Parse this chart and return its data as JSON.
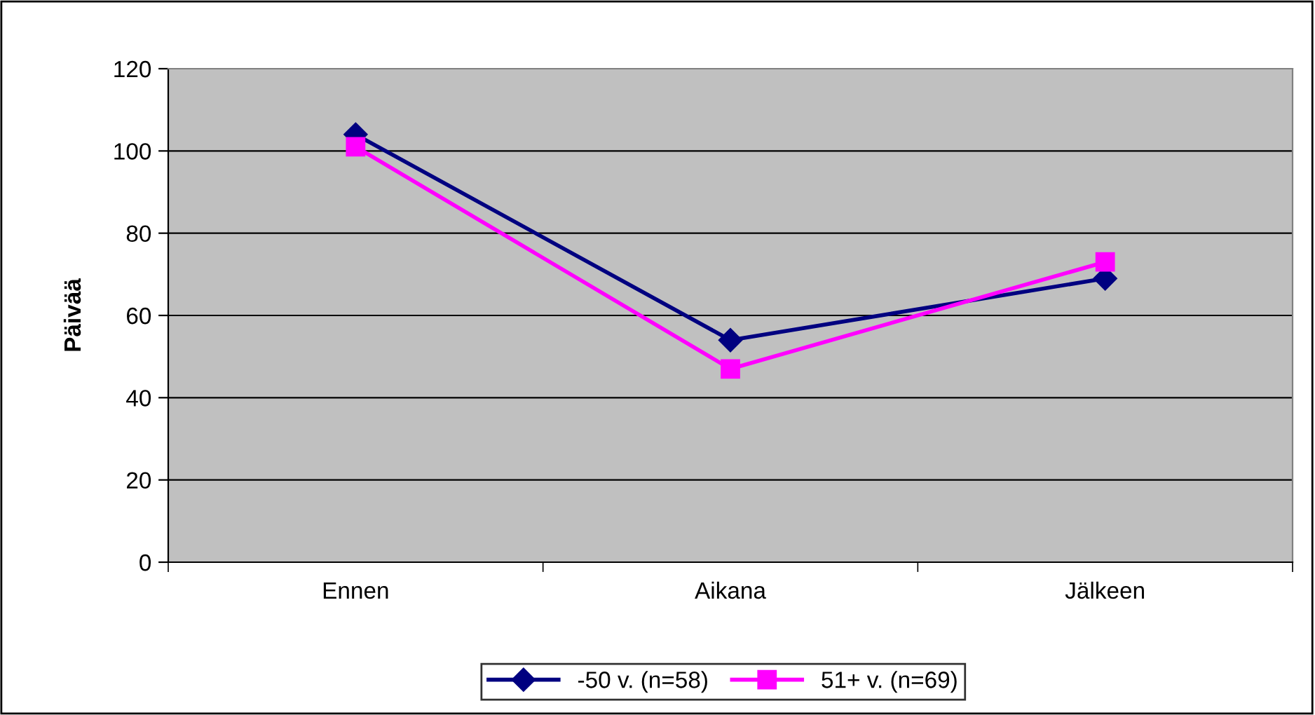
{
  "chart_data": {
    "type": "line",
    "ylabel": "Päivää",
    "categories": [
      "Ennen",
      "Aikana",
      "Jälkeen"
    ],
    "series": [
      {
        "name": "-50 v. (n=58)",
        "color": "#000080",
        "marker": "diamond",
        "values": [
          104,
          54,
          69
        ]
      },
      {
        "name": "51+ v. (n=69)",
        "color": "#ff00ff",
        "marker": "square",
        "values": [
          101,
          47,
          73
        ]
      }
    ],
    "ylim": [
      0,
      120
    ],
    "yticks": [
      0,
      20,
      40,
      60,
      80,
      100,
      120
    ],
    "grid": "y",
    "legend": "bottom",
    "line_style": "solid"
  }
}
